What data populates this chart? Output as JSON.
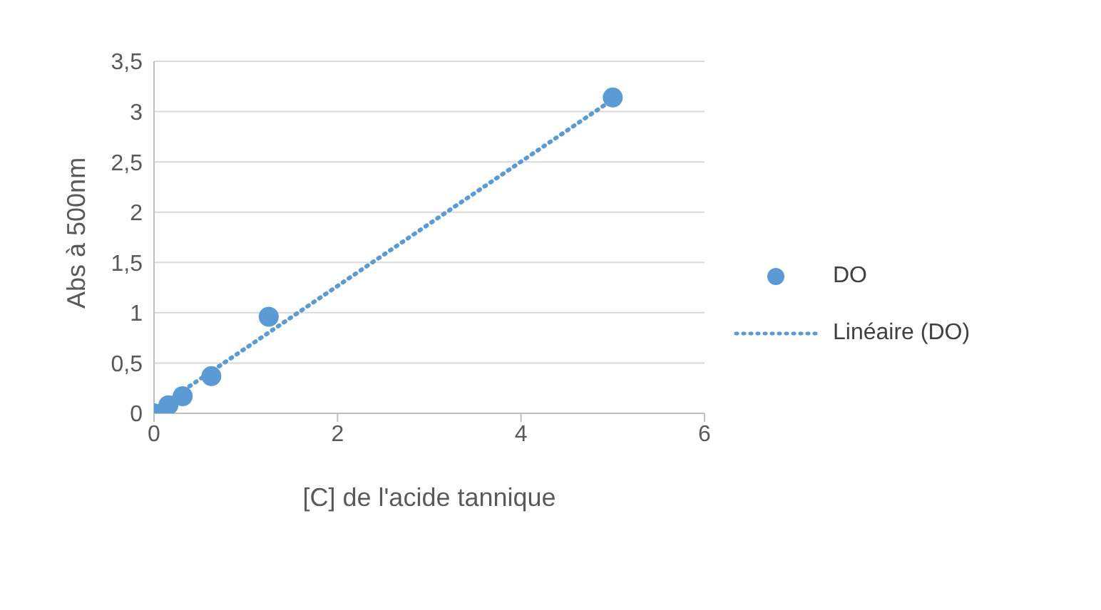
{
  "chart_data": {
    "type": "scatter",
    "xlabel": "[C] de l'acide tannique",
    "ylabel": "Abs à 500nm",
    "x": [
      0,
      0.156,
      0.3125,
      0.625,
      1.25,
      5
    ],
    "series": [
      {
        "name": "DO",
        "color": "#5b9bd5",
        "values": [
          0,
          0.08,
          0.17,
          0.37,
          0.96,
          3.14
        ],
        "marker": "circle"
      },
      {
        "name": "Linéaire (DO)",
        "type": "line",
        "color": "#5b9bd5",
        "x": [
          0,
          5
        ],
        "values": [
          0.03,
          3.12
        ],
        "line_style": "dotted",
        "marker": "none"
      }
    ],
    "xlim": [
      0,
      6
    ],
    "xticks": [
      0,
      2,
      4,
      6
    ],
    "ylim": [
      0,
      3.5
    ],
    "yticks": [
      0,
      {
        "value": 0.5,
        "label": "0,5"
      },
      1,
      {
        "value": 1.5,
        "label": "1,5"
      },
      2,
      {
        "value": 2.5,
        "label": "2,5"
      },
      3,
      {
        "value": 3.5,
        "label": "3,5"
      }
    ],
    "grid": "y",
    "legend": "right"
  }
}
